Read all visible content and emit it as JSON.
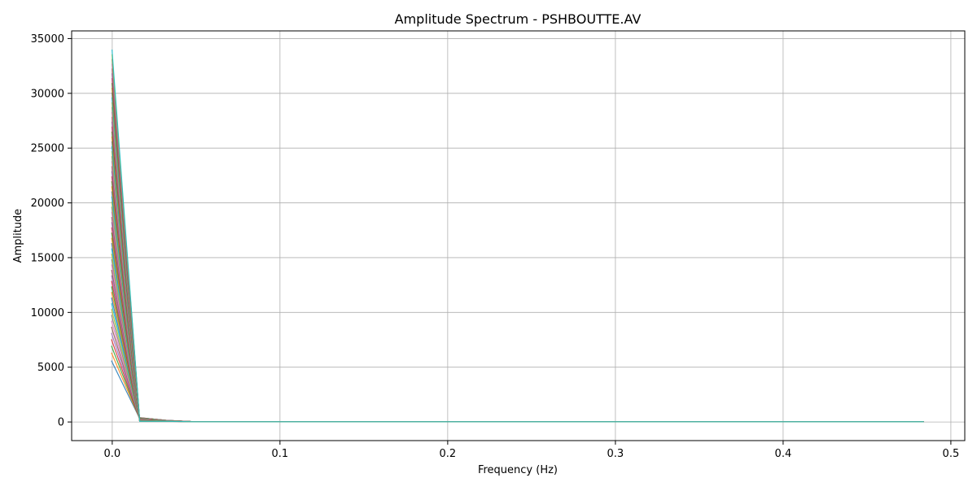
{
  "chart_data": {
    "type": "line",
    "title": "Amplitude Spectrum - PSHBOUTTE.AV",
    "xlabel": "Frequency (Hz)",
    "ylabel": "Amplitude",
    "xlim": [
      -0.0242,
      0.5083
    ],
    "ylim": [
      -1700,
      35700
    ],
    "grid": true,
    "xticks": [
      0.0,
      0.1,
      0.2,
      0.3,
      0.4,
      0.5
    ],
    "xtick_labels": [
      "0.0",
      "0.1",
      "0.2",
      "0.3",
      "0.4",
      "0.5"
    ],
    "yticks": [
      0,
      5000,
      10000,
      15000,
      20000,
      25000,
      30000,
      35000
    ],
    "ytick_labels": [
      "0",
      "5000",
      "10000",
      "15000",
      "20000",
      "25000",
      "30000",
      "35000"
    ],
    "x": [
      0.0,
      0.0161,
      0.0323,
      0.0484,
      0.0645,
      0.0806,
      0.0968,
      0.1129,
      0.129,
      0.1452,
      0.1613,
      0.1774,
      0.1935,
      0.2097,
      0.2258,
      0.2419,
      0.2581,
      0.2742,
      0.2903,
      0.3065,
      0.3226,
      0.3387,
      0.3548,
      0.371,
      0.3871,
      0.4032,
      0.4194,
      0.4355,
      0.4516,
      0.4677,
      0.4839
    ],
    "series_summary": {
      "count": 60,
      "dc_amplitude_min": 5600,
      "dc_amplitude_max": 34000,
      "second_bin_amplitude_max": 400,
      "tail_amplitude": 30,
      "colors": [
        "#1f77b4",
        "#ff7f0e",
        "#2ca02c",
        "#d62728",
        "#9467bd",
        "#8c564b",
        "#e377c2",
        "#7f7f7f",
        "#bcbd22",
        "#17becf"
      ]
    },
    "series": [
      {
        "name": "trace-1",
        "values": [
          5600,
          400,
          150,
          90,
          70,
          60,
          50,
          45,
          40,
          38,
          36,
          35,
          34,
          33,
          32,
          31,
          31,
          30,
          30,
          30,
          30,
          30,
          29,
          29,
          29,
          29,
          29,
          29,
          29,
          29,
          29
        ]
      },
      {
        "name": "trace-2",
        "values": [
          34000,
          120,
          60,
          40,
          30,
          28,
          26,
          25,
          24,
          23,
          22,
          22,
          21,
          21,
          21,
          20,
          20,
          20,
          20,
          20,
          20,
          20,
          20,
          20,
          20,
          20,
          20,
          20,
          20,
          20,
          20
        ]
      }
    ]
  }
}
